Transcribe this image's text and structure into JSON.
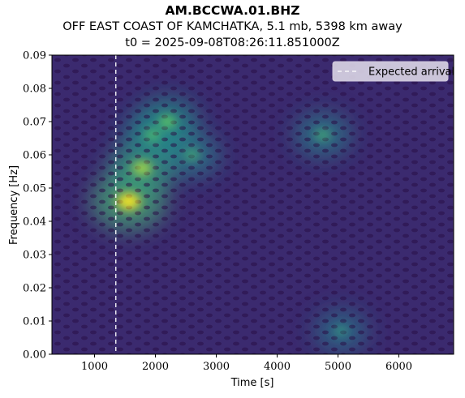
{
  "chart_data": {
    "type": "heatmap",
    "title": "AM.BCCWA.01.BHZ",
    "subtitle": "OFF EAST COAST OF KAMCHATKA, 5.1 mb, 5398 km away",
    "subtitle2": "t0 = 2025-09-08T08:26:11.851000Z",
    "xlabel": "Time [s]",
    "ylabel": "Frequency [Hz]",
    "xlim": [
      300,
      6900
    ],
    "ylim": [
      0.0,
      0.09
    ],
    "xticks": [
      1000,
      2000,
      3000,
      4000,
      5000,
      6000
    ],
    "yticks": [
      0.0,
      0.01,
      0.02,
      0.03,
      0.04,
      0.05,
      0.06,
      0.07,
      0.08,
      0.09
    ],
    "ytick_labels": [
      "0.00",
      "0.01",
      "0.02",
      "0.03",
      "0.04",
      "0.05",
      "0.06",
      "0.07",
      "0.08",
      "0.09"
    ],
    "colormap": "viridis",
    "expected_arrival": 1350,
    "legend": {
      "label": "Expected arrival",
      "placement": "top-right"
    },
    "hotspots": [
      {
        "x": 1560,
        "y": 0.046,
        "intensity": 1.0
      },
      {
        "x": 1780,
        "y": 0.056,
        "intensity": 0.75
      },
      {
        "x": 2200,
        "y": 0.07,
        "intensity": 0.55
      },
      {
        "x": 1950,
        "y": 0.066,
        "intensity": 0.45
      },
      {
        "x": 2600,
        "y": 0.06,
        "intensity": 0.35
      },
      {
        "x": 4750,
        "y": 0.066,
        "intensity": 0.35
      },
      {
        "x": 5050,
        "y": 0.007,
        "intensity": 0.22
      }
    ]
  }
}
